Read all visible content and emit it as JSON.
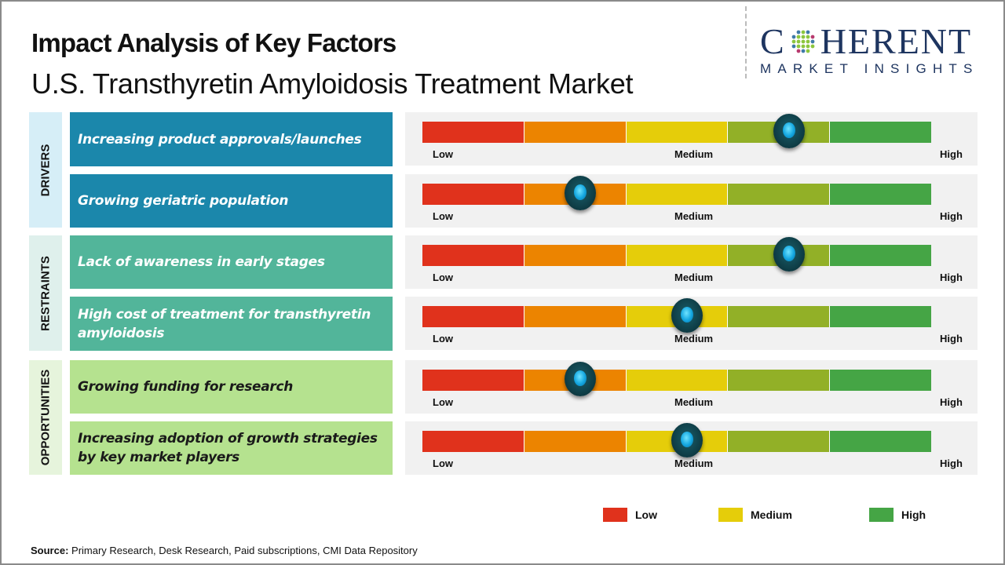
{
  "header": {
    "title": "Impact Analysis of Key Factors",
    "subtitle": "U.S. Transthyretin Amyloidosis Treatment Market"
  },
  "logo": {
    "brand_left": "C",
    "brand_right": "HERENT",
    "tagline": "MARKET INSIGHTS"
  },
  "categories": [
    {
      "label": "DRIVERS",
      "bg": "#d6eef7",
      "box_color": "#1b87ab",
      "text_color": "#ffffff"
    },
    {
      "label": "RESTRAINTS",
      "bg": "#dff0ec",
      "box_color": "#52b59a",
      "text_color": "#ffffff"
    },
    {
      "label": "OPPORTUNITIES",
      "bg": "#e6f4dc",
      "box_color": "#b5e28f",
      "text_color": "#1a1a1a"
    }
  ],
  "gauge_labels": {
    "low": "Low",
    "medium": "Medium",
    "high": "High"
  },
  "segment_colors": [
    "#e0321c",
    "#ec8400",
    "#e5cd0a",
    "#92b027",
    "#45a545"
  ],
  "chart_data": {
    "type": "table",
    "title": "Impact Analysis of Key Factors",
    "subtitle": "U.S. Transthyretin Amyloidosis Treatment Market",
    "scale": [
      "Low",
      "Medium",
      "High"
    ],
    "scale_range": [
      0,
      1
    ],
    "factors": [
      {
        "category": "DRIVERS",
        "label": "Increasing product approvals/launches",
        "impact": 0.72
      },
      {
        "category": "DRIVERS",
        "label": "Growing geriatric population",
        "impact": 0.31
      },
      {
        "category": "RESTRAINTS",
        "label": "Lack of awareness in early stages",
        "impact": 0.72
      },
      {
        "category": "RESTRAINTS",
        "label": "High cost of treatment for transthyretin amyloidosis",
        "impact": 0.52
      },
      {
        "category": "OPPORTUNITIES",
        "label": "Growing funding for research",
        "impact": 0.31
      },
      {
        "category": "OPPORTUNITIES",
        "label": "Increasing adoption of growth strategies by key market players",
        "impact": 0.52
      }
    ],
    "legend": [
      {
        "label": "Low",
        "color": "#e0321c"
      },
      {
        "label": "Medium",
        "color": "#e5cd0a"
      },
      {
        "label": "High",
        "color": "#45a545"
      }
    ]
  },
  "source": {
    "label": "Source:",
    "text": " Primary Research, Desk Research, Paid subscriptions, CMI Data Repository"
  }
}
